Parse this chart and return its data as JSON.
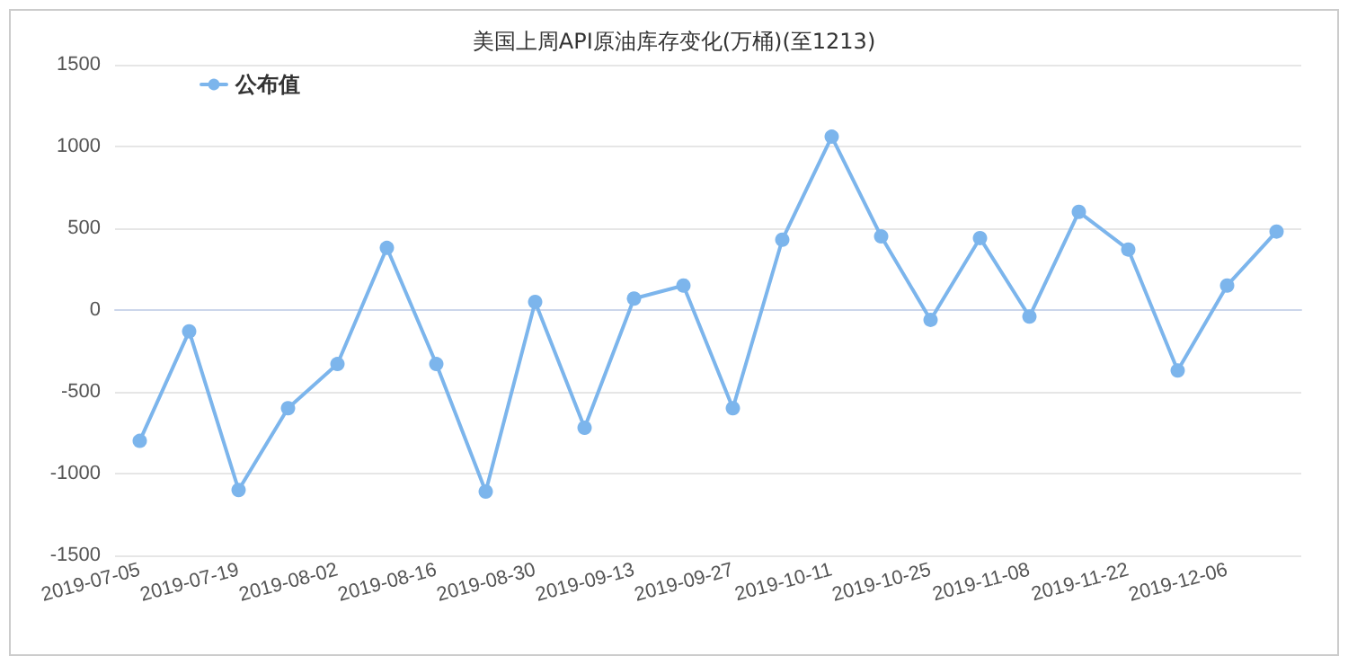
{
  "chart_data": {
    "type": "line",
    "title": "美国上周API原油库存变化(万桶)(至1213)",
    "categories": [
      "2019-07-05",
      null,
      "2019-07-19",
      null,
      "2019-08-02",
      null,
      "2019-08-16",
      null,
      "2019-08-30",
      null,
      "2019-09-13",
      null,
      "2019-09-27",
      null,
      "2019-10-11",
      null,
      "2019-10-25",
      null,
      "2019-11-08",
      null,
      "2019-11-22",
      null,
      "2019-12-06",
      null
    ],
    "series": [
      {
        "name": "公布值",
        "color": "#7cb5ec",
        "values": [
          -800,
          -130,
          -1100,
          -600,
          -330,
          380,
          -330,
          -1110,
          50,
          -720,
          70,
          150,
          -600,
          430,
          1060,
          450,
          -60,
          440,
          -40,
          600,
          370,
          -370,
          150,
          480
        ]
      }
    ],
    "ylim": [
      -1500,
      1500
    ],
    "yticks": [
      -1500,
      -1000,
      -500,
      0,
      500,
      1000,
      1500
    ],
    "grid": "y",
    "legend": "top left",
    "marker": "circle",
    "line_style": "solid"
  }
}
